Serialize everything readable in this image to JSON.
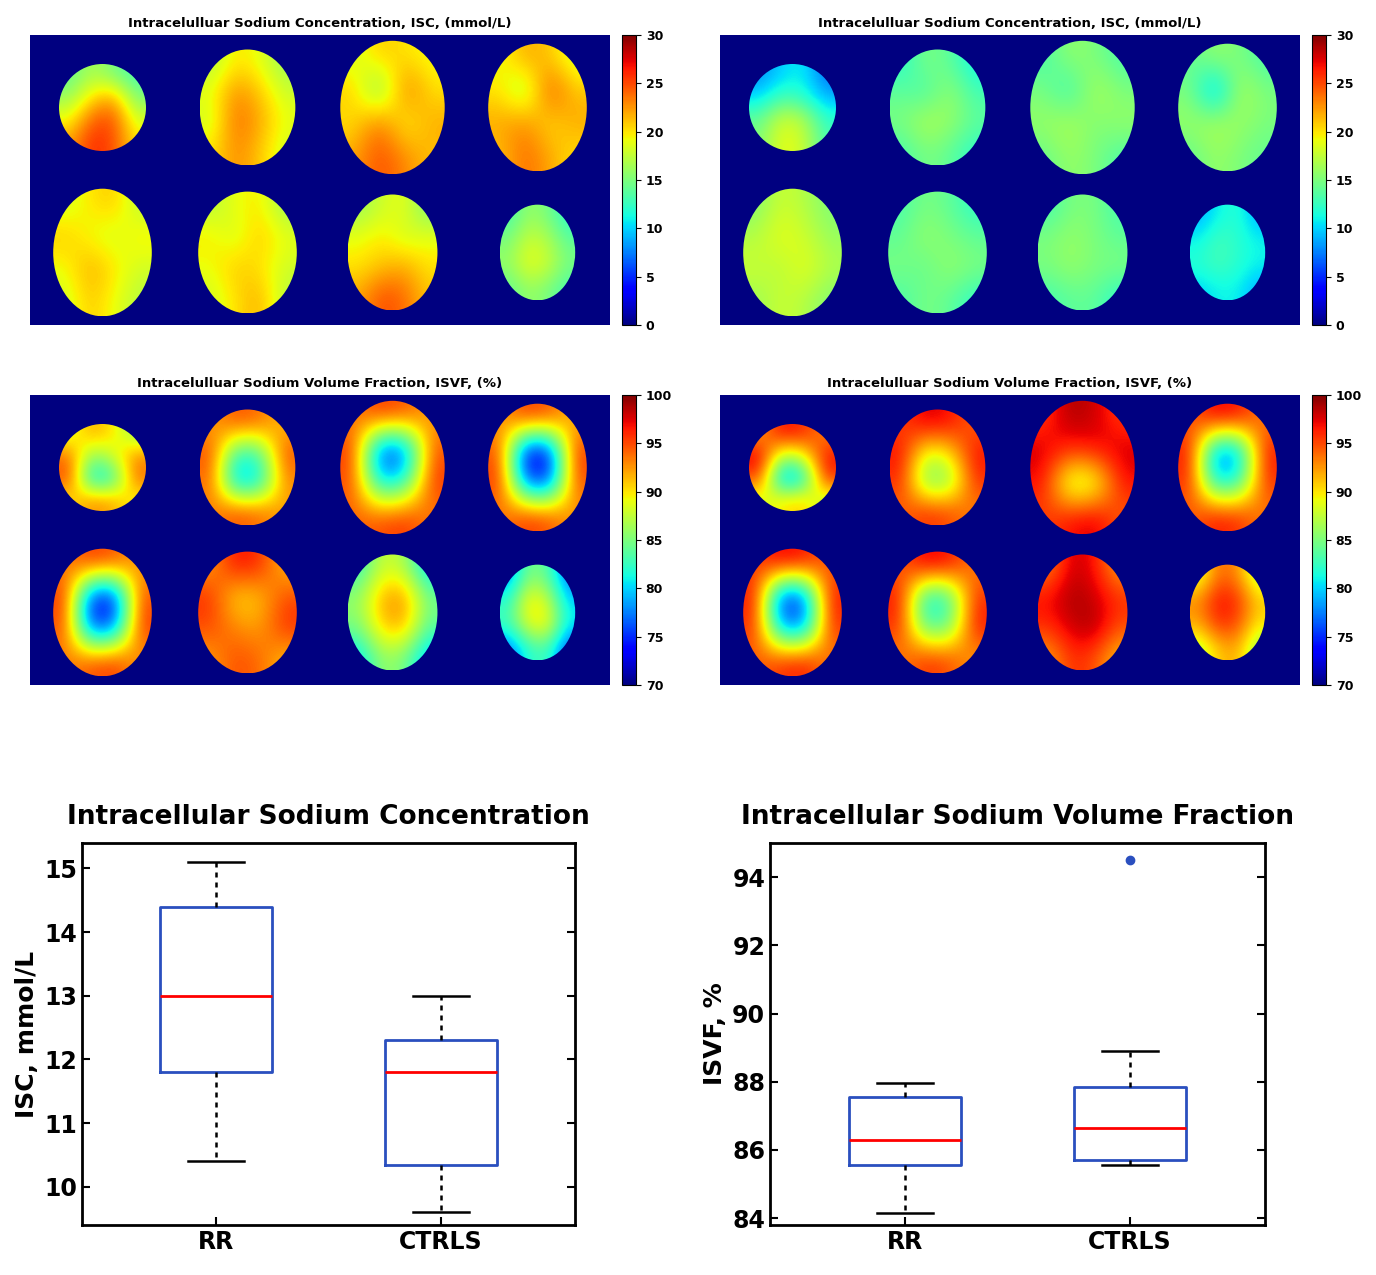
{
  "chart_data": [
    {
      "type": "heatmap",
      "title": "Intracelulluar Sodium Concentration, ISC, (mmol/L)",
      "tick_labels": false,
      "colorbar": {
        "range": [
          0,
          30
        ],
        "ticks": [
          0,
          5,
          10,
          15,
          20,
          25,
          30
        ]
      },
      "cells": [
        [
          [
            14,
            17,
            15,
            13
          ],
          [
            16,
            20,
            22,
            15
          ],
          [
            19,
            24,
            25,
            18
          ],
          [
            22,
            26,
            25,
            20
          ]
        ],
        [
          [
            17,
            20,
            19,
            16
          ],
          [
            19,
            23,
            21,
            18
          ],
          [
            18,
            24,
            22,
            19
          ],
          [
            20,
            23,
            21,
            18
          ]
        ],
        [
          [
            18,
            21,
            20,
            19
          ],
          [
            21,
            14,
            24,
            20
          ],
          [
            20,
            24,
            19,
            22
          ],
          [
            22,
            25,
            23,
            21
          ]
        ],
        [
          [
            19,
            22,
            21,
            18
          ],
          [
            20,
            16,
            25,
            21
          ],
          [
            22,
            23,
            20,
            22
          ],
          [
            21,
            24,
            22,
            20
          ]
        ],
        [
          [
            18,
            20,
            21,
            17
          ],
          [
            21,
            19,
            18,
            20
          ],
          [
            19,
            22,
            20,
            18
          ],
          [
            18,
            21,
            19,
            17
          ]
        ],
        [
          [
            17,
            19,
            20,
            16
          ],
          [
            20,
            18,
            21,
            19
          ],
          [
            19,
            21,
            20,
            18
          ],
          [
            18,
            20,
            22,
            17
          ]
        ],
        [
          [
            16,
            18,
            19,
            15
          ],
          [
            19,
            20,
            18,
            19
          ],
          [
            20,
            21,
            22,
            20
          ],
          [
            22,
            25,
            24,
            21
          ]
        ],
        [
          [
            13,
            16,
            15,
            12
          ],
          [
            15,
            18,
            17,
            14
          ],
          [
            16,
            19,
            18,
            15
          ],
          [
            14,
            16,
            15,
            13
          ]
        ]
      ]
    },
    {
      "type": "heatmap",
      "title": "Intracelulluar Sodium Concentration, ISC, (mmol/L)",
      "tick_labels": false,
      "colorbar": {
        "range": [
          0,
          30
        ],
        "ticks": [
          0,
          5,
          10,
          15,
          20,
          25,
          30
        ]
      },
      "cells": [
        [
          [
            8,
            10,
            11,
            7
          ],
          [
            10,
            13,
            12,
            9
          ],
          [
            14,
            18,
            17,
            12
          ],
          [
            15,
            19,
            18,
            13
          ]
        ],
        [
          [
            12,
            15,
            14,
            11
          ],
          [
            14,
            13,
            16,
            13
          ],
          [
            15,
            17,
            16,
            14
          ],
          [
            13,
            15,
            14,
            12
          ]
        ],
        [
          [
            13,
            16,
            15,
            13
          ],
          [
            15,
            12,
            17,
            15
          ],
          [
            16,
            17,
            15,
            16
          ],
          [
            14,
            16,
            15,
            13
          ]
        ],
        [
          [
            14,
            16,
            15,
            13
          ],
          [
            15,
            8,
            17,
            15
          ],
          [
            16,
            17,
            16,
            15
          ],
          [
            14,
            16,
            15,
            14
          ]
        ],
        [
          [
            15,
            18,
            17,
            15
          ],
          [
            17,
            19,
            18,
            16
          ],
          [
            18,
            17,
            19,
            17
          ],
          [
            16,
            18,
            17,
            15
          ]
        ],
        [
          [
            13,
            15,
            14,
            12
          ],
          [
            14,
            16,
            15,
            14
          ],
          [
            15,
            14,
            16,
            15
          ],
          [
            13,
            15,
            14,
            12
          ]
        ],
        [
          [
            13,
            15,
            15,
            13
          ],
          [
            15,
            16,
            15,
            14
          ],
          [
            15,
            16,
            15,
            15
          ],
          [
            13,
            14,
            14,
            12
          ]
        ],
        [
          [
            9,
            11,
            12,
            9
          ],
          [
            11,
            13,
            12,
            11
          ],
          [
            12,
            13,
            12,
            11
          ],
          [
            10,
            11,
            11,
            9
          ]
        ]
      ]
    },
    {
      "type": "heatmap",
      "title": "Intracelulluar Sodium Volume Fraction, ISVF, (%)",
      "tick_labels": false,
      "colorbar": {
        "range": [
          70,
          100
        ],
        "ticks": [
          70,
          75,
          80,
          85,
          90,
          95,
          100
        ]
      },
      "cells": [
        [
          [
            88,
            92,
            90,
            86
          ],
          [
            94,
            85,
            88,
            93
          ],
          [
            95,
            80,
            82,
            94
          ],
          [
            90,
            93,
            92,
            89
          ]
        ],
        [
          [
            92,
            95,
            94,
            91
          ],
          [
            95,
            82,
            83,
            95
          ],
          [
            94,
            78,
            80,
            93
          ],
          [
            93,
            95,
            94,
            92
          ]
        ],
        [
          [
            93,
            96,
            95,
            92
          ],
          [
            96,
            74,
            75,
            95
          ],
          [
            95,
            80,
            82,
            96
          ],
          [
            94,
            95,
            96,
            93
          ]
        ],
        [
          [
            92,
            96,
            95,
            91
          ],
          [
            95,
            72,
            73,
            96
          ],
          [
            96,
            76,
            75,
            95
          ],
          [
            93,
            96,
            95,
            92
          ]
        ],
        [
          [
            93,
            96,
            95,
            92
          ],
          [
            96,
            74,
            73,
            95
          ],
          [
            95,
            75,
            76,
            96
          ],
          [
            93,
            95,
            96,
            92
          ]
        ],
        [
          [
            92,
            97,
            96,
            91
          ],
          [
            96,
            90,
            91,
            95
          ],
          [
            95,
            93,
            92,
            96
          ],
          [
            92,
            95,
            94,
            91
          ]
        ],
        [
          [
            82,
            88,
            87,
            80
          ],
          [
            86,
            92,
            93,
            85
          ],
          [
            85,
            91,
            92,
            84
          ],
          [
            80,
            86,
            85,
            79
          ]
        ],
        [
          [
            78,
            85,
            84,
            77
          ],
          [
            82,
            90,
            88,
            80
          ],
          [
            83,
            89,
            90,
            81
          ],
          [
            77,
            82,
            83,
            76
          ]
        ]
      ]
    },
    {
      "type": "heatmap",
      "title": "Intracelulluar Sodium Volume Fraction, ISVF, (%)",
      "tick_labels": false,
      "colorbar": {
        "range": [
          70,
          100
        ],
        "ticks": [
          70,
          75,
          80,
          85,
          90,
          95,
          100
        ]
      },
      "cells": [
        [
          [
            92,
            97,
            96,
            93
          ],
          [
            98,
            86,
            88,
            97
          ],
          [
            95,
            78,
            80,
            96
          ],
          [
            88,
            90,
            91,
            87
          ]
        ],
        [
          [
            95,
            98,
            97,
            94
          ],
          [
            97,
            88,
            90,
            97
          ],
          [
            96,
            84,
            85,
            96
          ],
          [
            94,
            96,
            95,
            93
          ]
        ],
        [
          [
            95,
            99,
            98,
            95
          ],
          [
            98,
            96,
            97,
            98
          ],
          [
            97,
            86,
            87,
            97
          ],
          [
            95,
            97,
            98,
            94
          ]
        ],
        [
          [
            94,
            98,
            97,
            93
          ],
          [
            97,
            76,
            78,
            97
          ],
          [
            96,
            80,
            82,
            96
          ],
          [
            94,
            97,
            96,
            93
          ]
        ],
        [
          [
            95,
            98,
            97,
            94
          ],
          [
            97,
            74,
            75,
            97
          ],
          [
            96,
            78,
            77,
            96
          ],
          [
            94,
            96,
            97,
            93
          ]
        ],
        [
          [
            94,
            98,
            97,
            93
          ],
          [
            97,
            80,
            82,
            96
          ],
          [
            96,
            83,
            84,
            97
          ],
          [
            93,
            96,
            95,
            92
          ]
        ],
        [
          [
            93,
            98,
            97,
            92
          ],
          [
            97,
            99,
            98,
            96
          ],
          [
            96,
            98,
            99,
            95
          ],
          [
            92,
            96,
            95,
            91
          ]
        ],
        [
          [
            88,
            94,
            93,
            87
          ],
          [
            93,
            97,
            96,
            91
          ],
          [
            92,
            96,
            95,
            90
          ],
          [
            87,
            91,
            92,
            86
          ]
        ]
      ]
    },
    {
      "type": "box",
      "title": "Intracellular Sodium Concentration",
      "y_label": "ISC, mmol/L",
      "categories": [
        "RR",
        "CTRLS"
      ],
      "stats": [
        {
          "whislo": 10.4,
          "q1": 11.8,
          "med": 13.0,
          "q3": 14.4,
          "whishi": 15.1,
          "fliers": []
        },
        {
          "whislo": 9.6,
          "q1": 10.35,
          "med": 11.8,
          "q3": 12.3,
          "whishi": 13.0,
          "fliers": []
        }
      ],
      "ylim": [
        9.4,
        15.4
      ],
      "yticks": [
        10,
        11,
        12,
        13,
        14,
        15
      ],
      "color": "#2a4fbf"
    },
    {
      "type": "box",
      "title": "Intracellular Sodium Volume Fraction",
      "y_label": "ISVF, %",
      "categories": [
        "RR",
        "CTRLS"
      ],
      "stats": [
        {
          "whislo": 84.15,
          "q1": 85.55,
          "med": 86.3,
          "q3": 87.55,
          "whishi": 87.95,
          "fliers": []
        },
        {
          "whislo": 85.55,
          "q1": 85.7,
          "med": 86.65,
          "q3": 87.85,
          "whishi": 88.9,
          "fliers": [
            94.5
          ]
        }
      ],
      "ylim": [
        83.8,
        95.0
      ],
      "yticks": [
        84,
        86,
        88,
        90,
        92,
        94
      ],
      "color": "#2a4fbf"
    }
  ]
}
